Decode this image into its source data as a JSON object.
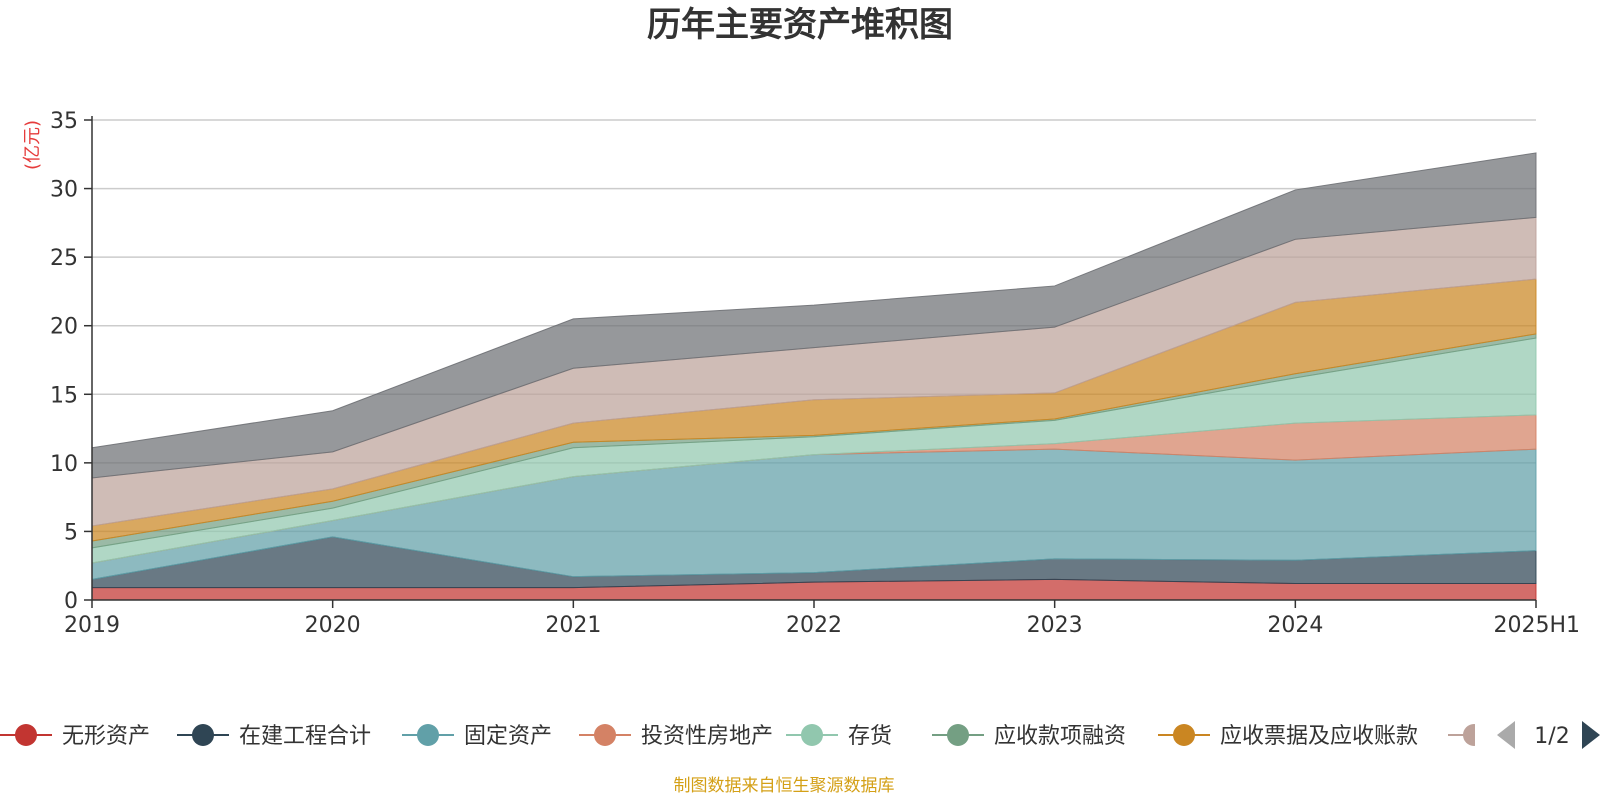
{
  "title": "历年主要资产堆积图",
  "source_note": "制图数据来自恒生聚源数据库",
  "chart_data": {
    "type": "area",
    "stacked": true,
    "title": "历年主要资产堆积图",
    "ylabel": "(亿元)",
    "ylim": [
      0,
      35
    ],
    "yticks": [
      0,
      5,
      10,
      15,
      20,
      25,
      30,
      35
    ],
    "categories": [
      "2019",
      "2020",
      "2021",
      "2022",
      "2023",
      "2024",
      "2025H1"
    ],
    "grid": true,
    "series": [
      {
        "name": "无形资产",
        "color": "#c23531",
        "values": [
          0.9,
          0.9,
          0.9,
          1.3,
          1.5,
          1.2,
          1.2
        ]
      },
      {
        "name": "在建工程合计",
        "color": "#2f4554",
        "values": [
          0.6,
          3.7,
          0.8,
          0.7,
          1.5,
          1.7,
          2.4
        ]
      },
      {
        "name": "固定资产",
        "color": "#61a0a8",
        "values": [
          1.2,
          1.2,
          7.3,
          8.6,
          8.0,
          7.3,
          7.4
        ]
      },
      {
        "name": "投资性房地产",
        "color": "#d48265",
        "values": [
          0.0,
          0.0,
          0.0,
          0.0,
          0.4,
          2.7,
          2.5
        ]
      },
      {
        "name": "存货",
        "color": "#91c7ae",
        "values": [
          1.1,
          0.9,
          2.1,
          1.3,
          1.7,
          3.3,
          5.6
        ]
      },
      {
        "name": "应收款项融资",
        "color": "#749f83",
        "values": [
          0.5,
          0.5,
          0.4,
          0.1,
          0.1,
          0.3,
          0.3
        ]
      },
      {
        "name": "应收票据及应收账款",
        "color": "#ca8622",
        "values": [
          1.1,
          0.9,
          1.4,
          2.6,
          1.9,
          5.2,
          4.0
        ]
      },
      {
        "name": "",
        "color": "#bda29a",
        "values": [
          3.5,
          2.7,
          4.0,
          3.8,
          4.8,
          4.6,
          4.5
        ]
      },
      {
        "name": "",
        "color": "#6e7074",
        "values": [
          2.2,
          3.0,
          3.6,
          3.1,
          3.0,
          3.6,
          4.7
        ]
      }
    ],
    "legend": {
      "position": "bottom",
      "page": "1/2"
    }
  }
}
